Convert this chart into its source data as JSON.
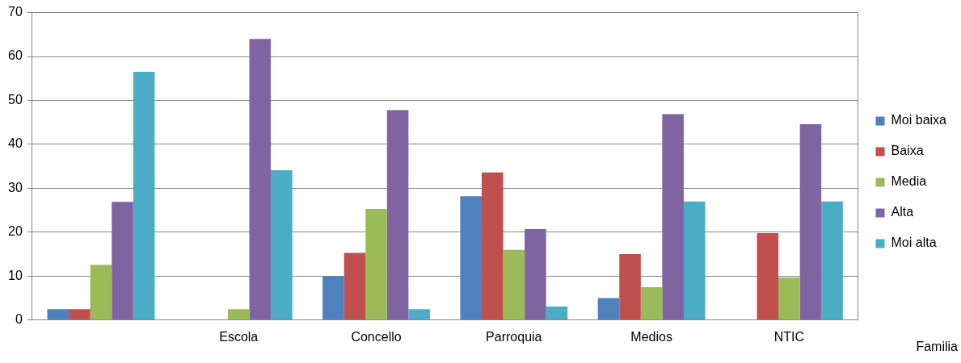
{
  "chart_data": {
    "type": "bar",
    "categories": [
      null,
      "Escola",
      "Concello",
      "Parroquia",
      "Medios",
      "NTIC"
    ],
    "series": [
      {
        "name": "Moi baixa",
        "color": "#4f81bd",
        "values": [
          2.5,
          0,
          10,
          28.2,
          5,
          0
        ]
      },
      {
        "name": "Baixa",
        "color": "#c0504d",
        "values": [
          2.5,
          0,
          15.3,
          33.6,
          15,
          19.8
        ]
      },
      {
        "name": "Media",
        "color": "#9bbb59",
        "values": [
          12.6,
          2.5,
          25.3,
          16,
          7.5,
          9.7
        ]
      },
      {
        "name": "Alta",
        "color": "#8064a2",
        "values": [
          26.9,
          64,
          47.8,
          20.7,
          46.9,
          44.6
        ]
      },
      {
        "name": "Moi alta",
        "color": "#4bacc6",
        "values": [
          56.5,
          34.1,
          2.5,
          3.1,
          27,
          27
        ]
      }
    ],
    "ylim": [
      0,
      70
    ],
    "yticks": [
      0,
      10,
      20,
      30,
      40,
      50,
      60,
      70
    ],
    "grid": "y",
    "legend": "right",
    "annotations": [
      "Familia"
    ]
  }
}
